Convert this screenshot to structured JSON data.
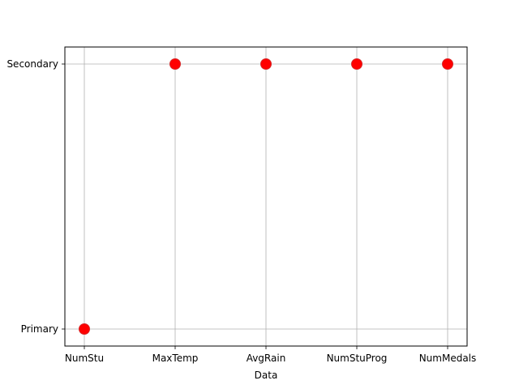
{
  "chart_data": {
    "type": "scatter",
    "title": "",
    "xlabel": "Data",
    "ylabel": "",
    "categories": [
      "NumStu",
      "MaxTemp",
      "AvgRain",
      "NumStuProg",
      "NumMedals"
    ],
    "y_categories": [
      "Primary",
      "Secondary"
    ],
    "points": [
      {
        "x": "NumStu",
        "y": "Primary"
      },
      {
        "x": "MaxTemp",
        "y": "Secondary"
      },
      {
        "x": "AvgRain",
        "y": "Secondary"
      },
      {
        "x": "NumStuProg",
        "y": "Secondary"
      },
      {
        "x": "NumMedals",
        "y": "Secondary"
      }
    ],
    "grid": true,
    "marker_color": "#ff0000",
    "marker_edge_color": "#d62728",
    "grid_color": "#b0b0b0"
  }
}
